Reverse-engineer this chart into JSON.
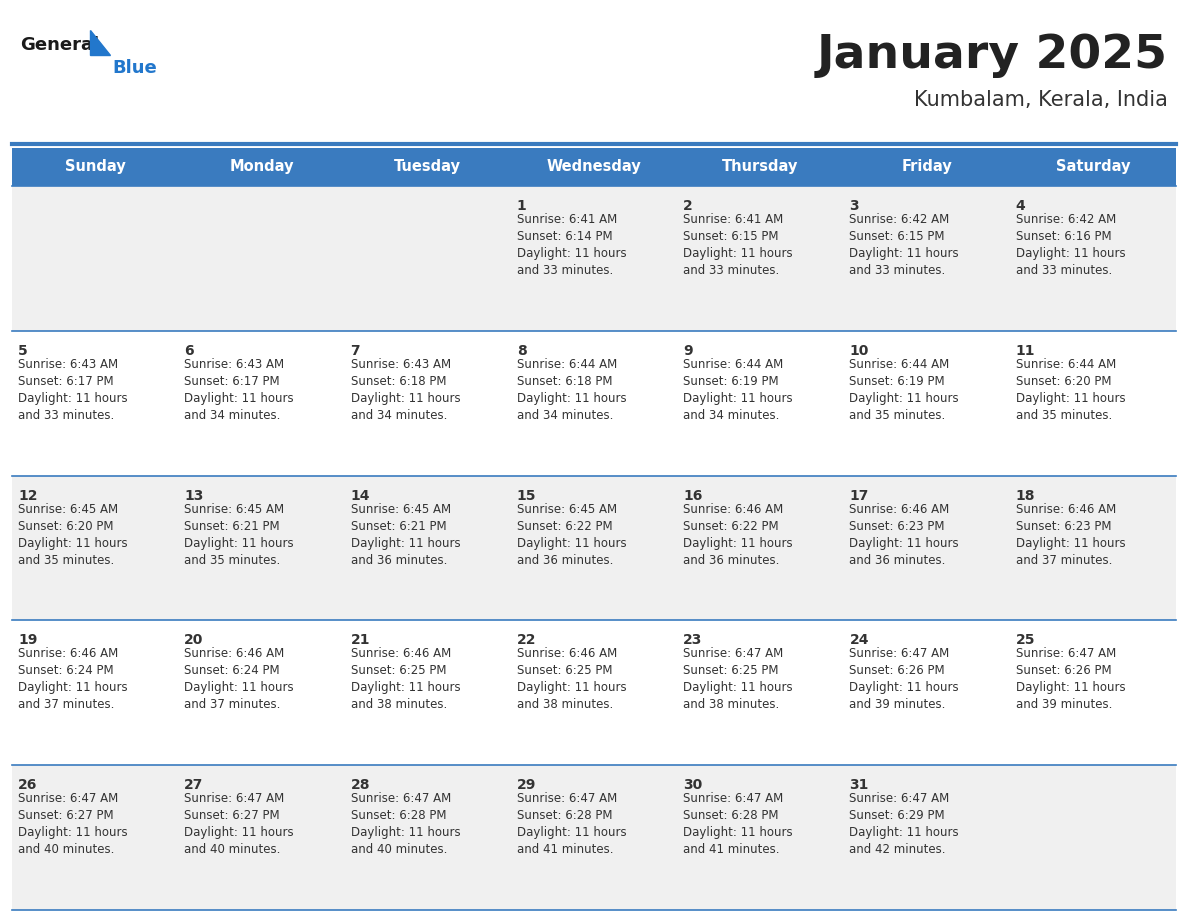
{
  "title": "January 2025",
  "subtitle": "Kumbalam, Kerala, India",
  "header_bg_color": "#3a7bbf",
  "header_text_color": "#ffffff",
  "day_names": [
    "Sunday",
    "Monday",
    "Tuesday",
    "Wednesday",
    "Thursday",
    "Friday",
    "Saturday"
  ],
  "alt_row_color": "#f0f0f0",
  "white_row_color": "#ffffff",
  "cell_border_color": "#3a7bbf",
  "day_number_color": "#333333",
  "info_text_color": "#333333",
  "title_color": "#222222",
  "subtitle_color": "#333333",
  "logo_general_color": "#1a1a1a",
  "logo_blue_color": "#2277cc",
  "days_data": [
    {
      "day": 1,
      "col": 3,
      "row": 0,
      "sunrise": "6:41 AM",
      "sunset": "6:14 PM",
      "daylight_hours": 11,
      "daylight_minutes": 33
    },
    {
      "day": 2,
      "col": 4,
      "row": 0,
      "sunrise": "6:41 AM",
      "sunset": "6:15 PM",
      "daylight_hours": 11,
      "daylight_minutes": 33
    },
    {
      "day": 3,
      "col": 5,
      "row": 0,
      "sunrise": "6:42 AM",
      "sunset": "6:15 PM",
      "daylight_hours": 11,
      "daylight_minutes": 33
    },
    {
      "day": 4,
      "col": 6,
      "row": 0,
      "sunrise": "6:42 AM",
      "sunset": "6:16 PM",
      "daylight_hours": 11,
      "daylight_minutes": 33
    },
    {
      "day": 5,
      "col": 0,
      "row": 1,
      "sunrise": "6:43 AM",
      "sunset": "6:17 PM",
      "daylight_hours": 11,
      "daylight_minutes": 33
    },
    {
      "day": 6,
      "col": 1,
      "row": 1,
      "sunrise": "6:43 AM",
      "sunset": "6:17 PM",
      "daylight_hours": 11,
      "daylight_minutes": 34
    },
    {
      "day": 7,
      "col": 2,
      "row": 1,
      "sunrise": "6:43 AM",
      "sunset": "6:18 PM",
      "daylight_hours": 11,
      "daylight_minutes": 34
    },
    {
      "day": 8,
      "col": 3,
      "row": 1,
      "sunrise": "6:44 AM",
      "sunset": "6:18 PM",
      "daylight_hours": 11,
      "daylight_minutes": 34
    },
    {
      "day": 9,
      "col": 4,
      "row": 1,
      "sunrise": "6:44 AM",
      "sunset": "6:19 PM",
      "daylight_hours": 11,
      "daylight_minutes": 34
    },
    {
      "day": 10,
      "col": 5,
      "row": 1,
      "sunrise": "6:44 AM",
      "sunset": "6:19 PM",
      "daylight_hours": 11,
      "daylight_minutes": 35
    },
    {
      "day": 11,
      "col": 6,
      "row": 1,
      "sunrise": "6:44 AM",
      "sunset": "6:20 PM",
      "daylight_hours": 11,
      "daylight_minutes": 35
    },
    {
      "day": 12,
      "col": 0,
      "row": 2,
      "sunrise": "6:45 AM",
      "sunset": "6:20 PM",
      "daylight_hours": 11,
      "daylight_minutes": 35
    },
    {
      "day": 13,
      "col": 1,
      "row": 2,
      "sunrise": "6:45 AM",
      "sunset": "6:21 PM",
      "daylight_hours": 11,
      "daylight_minutes": 35
    },
    {
      "day": 14,
      "col": 2,
      "row": 2,
      "sunrise": "6:45 AM",
      "sunset": "6:21 PM",
      "daylight_hours": 11,
      "daylight_minutes": 36
    },
    {
      "day": 15,
      "col": 3,
      "row": 2,
      "sunrise": "6:45 AM",
      "sunset": "6:22 PM",
      "daylight_hours": 11,
      "daylight_minutes": 36
    },
    {
      "day": 16,
      "col": 4,
      "row": 2,
      "sunrise": "6:46 AM",
      "sunset": "6:22 PM",
      "daylight_hours": 11,
      "daylight_minutes": 36
    },
    {
      "day": 17,
      "col": 5,
      "row": 2,
      "sunrise": "6:46 AM",
      "sunset": "6:23 PM",
      "daylight_hours": 11,
      "daylight_minutes": 36
    },
    {
      "day": 18,
      "col": 6,
      "row": 2,
      "sunrise": "6:46 AM",
      "sunset": "6:23 PM",
      "daylight_hours": 11,
      "daylight_minutes": 37
    },
    {
      "day": 19,
      "col": 0,
      "row": 3,
      "sunrise": "6:46 AM",
      "sunset": "6:24 PM",
      "daylight_hours": 11,
      "daylight_minutes": 37
    },
    {
      "day": 20,
      "col": 1,
      "row": 3,
      "sunrise": "6:46 AM",
      "sunset": "6:24 PM",
      "daylight_hours": 11,
      "daylight_minutes": 37
    },
    {
      "day": 21,
      "col": 2,
      "row": 3,
      "sunrise": "6:46 AM",
      "sunset": "6:25 PM",
      "daylight_hours": 11,
      "daylight_minutes": 38
    },
    {
      "day": 22,
      "col": 3,
      "row": 3,
      "sunrise": "6:46 AM",
      "sunset": "6:25 PM",
      "daylight_hours": 11,
      "daylight_minutes": 38
    },
    {
      "day": 23,
      "col": 4,
      "row": 3,
      "sunrise": "6:47 AM",
      "sunset": "6:25 PM",
      "daylight_hours": 11,
      "daylight_minutes": 38
    },
    {
      "day": 24,
      "col": 5,
      "row": 3,
      "sunrise": "6:47 AM",
      "sunset": "6:26 PM",
      "daylight_hours": 11,
      "daylight_minutes": 39
    },
    {
      "day": 25,
      "col": 6,
      "row": 3,
      "sunrise": "6:47 AM",
      "sunset": "6:26 PM",
      "daylight_hours": 11,
      "daylight_minutes": 39
    },
    {
      "day": 26,
      "col": 0,
      "row": 4,
      "sunrise": "6:47 AM",
      "sunset": "6:27 PM",
      "daylight_hours": 11,
      "daylight_minutes": 40
    },
    {
      "day": 27,
      "col": 1,
      "row": 4,
      "sunrise": "6:47 AM",
      "sunset": "6:27 PM",
      "daylight_hours": 11,
      "daylight_minutes": 40
    },
    {
      "day": 28,
      "col": 2,
      "row": 4,
      "sunrise": "6:47 AM",
      "sunset": "6:28 PM",
      "daylight_hours": 11,
      "daylight_minutes": 40
    },
    {
      "day": 29,
      "col": 3,
      "row": 4,
      "sunrise": "6:47 AM",
      "sunset": "6:28 PM",
      "daylight_hours": 11,
      "daylight_minutes": 41
    },
    {
      "day": 30,
      "col": 4,
      "row": 4,
      "sunrise": "6:47 AM",
      "sunset": "6:28 PM",
      "daylight_hours": 11,
      "daylight_minutes": 41
    },
    {
      "day": 31,
      "col": 5,
      "row": 4,
      "sunrise": "6:47 AM",
      "sunset": "6:29 PM",
      "daylight_hours": 11,
      "daylight_minutes": 42
    }
  ]
}
